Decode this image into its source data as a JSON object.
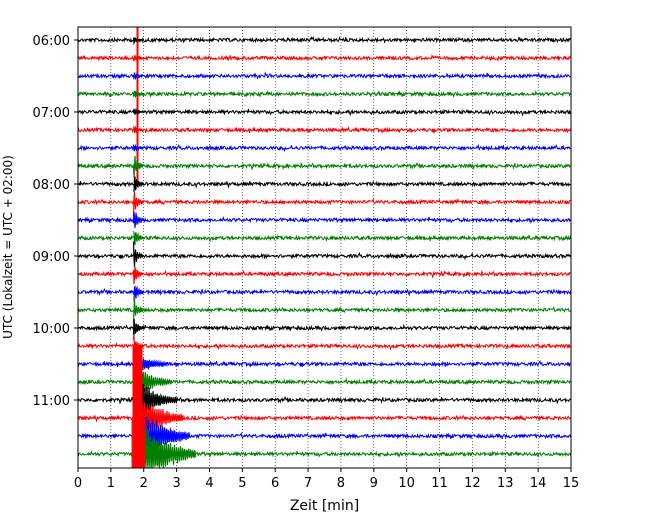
{
  "chart_data": {
    "type": "line",
    "xlabel": "Zeit  [min]",
    "ylabel": "UTC (Lokalzeit = UTC + 02:00)",
    "xlim": [
      0,
      15
    ],
    "x_ticks": [
      "0",
      "1",
      "2",
      "3",
      "4",
      "5",
      "6",
      "7",
      "8",
      "9",
      "10",
      "11",
      "12",
      "13",
      "14",
      "15"
    ],
    "y_ticks": [
      "06:00",
      "07:00",
      "08:00",
      "09:00",
      "10:00",
      "11:00"
    ],
    "grid": "vertical dotted at each minute",
    "trace_colors": [
      "#000000",
      "#ff0000",
      "#0000ff",
      "#008000"
    ],
    "trace_start_times": [
      "06:00",
      "06:15",
      "06:30",
      "06:45",
      "07:00",
      "07:15",
      "07:30",
      "07:45",
      "08:00",
      "08:15",
      "08:30",
      "08:45",
      "09:00",
      "09:15",
      "09:30",
      "09:45",
      "10:00",
      "10:15",
      "10:30",
      "10:45",
      "11:00",
      "11:15",
      "11:30",
      "11:45"
    ],
    "minutes_per_trace": 15,
    "event": {
      "onset_minute": 1.75,
      "description_values": {
        "spike_top_at_time": "06:00",
        "strong_amplitude_from": "08:00",
        "max_amplitude_near": "11:30"
      }
    }
  }
}
